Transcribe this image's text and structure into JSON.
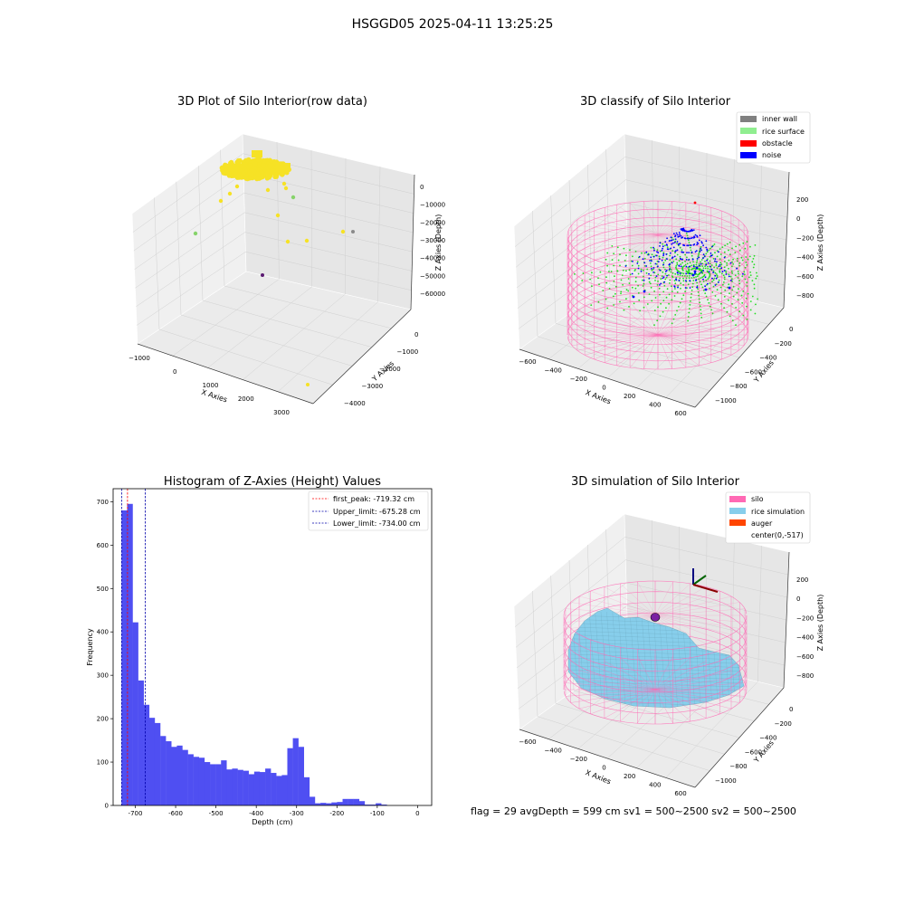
{
  "suptitle": "HSGGD05 2025-04-11 13:25:25",
  "footer": "flag = 29  avgDepth = 599 cm  sv1 = 500~2500  sv2 = 500~2500",
  "colors": {
    "raw": "#f6e225",
    "inner_wall": "#808080",
    "rice_surface": "#90ee90",
    "obstacle": "#ff0000",
    "noise": "#0000ff",
    "silo": "#ff69b4",
    "rice_simulation": "#87ceeb",
    "auger": "#ff4500",
    "hist_bar": "#4f4ff2",
    "first_peak": "#ff0000",
    "limits": "#0000aa"
  },
  "chart_data": [
    {
      "type": "scatter",
      "title": "3D Plot of Silo Interior(row data)",
      "xlabel": "X Axies",
      "ylabel": "Y Axies",
      "zlabel": "Z Axies (Depth)",
      "xticks": [
        "−1000",
        "0",
        "1000",
        "2000",
        "3000"
      ],
      "yticks": [
        "0",
        "−1000",
        "−2000",
        "−3000",
        "−4000"
      ],
      "zticks": [
        "0",
        "−10000",
        "−20000",
        "−30000",
        "−40000",
        "−50000",
        "−60000"
      ],
      "xlim": [
        -1000,
        3500
      ],
      "ylim": [
        -4200,
        400
      ],
      "zlim": [
        -65000,
        2000
      ],
      "cluster": {
        "x_range": [
          -700,
          600
        ],
        "y_range": [
          -600,
          400
        ],
        "z": -300
      },
      "points": [
        {
          "x": -300,
          "y": 200,
          "z": -12000,
          "c": "#f6e225"
        },
        {
          "x": -150,
          "y": 150,
          "z": -10500,
          "c": "#f6e225"
        },
        {
          "x": 0,
          "y": 100,
          "z": -8000,
          "c": "#f6e225"
        },
        {
          "x": 800,
          "y": -200,
          "z": -3500,
          "c": "#f6e225"
        },
        {
          "x": 1000,
          "y": -300,
          "z": -4200,
          "c": "#f6e225"
        },
        {
          "x": -500,
          "y": -900,
          "z": -25000,
          "c": "#f6e225"
        },
        {
          "x": 1600,
          "y": -800,
          "z": -14000,
          "c": "#86d36a"
        },
        {
          "x": 1700,
          "y": -1200,
          "z": -17000,
          "c": "#86d36a"
        },
        {
          "x": 700,
          "y": -1700,
          "z": -28000,
          "c": "#f6e225"
        },
        {
          "x": 1600,
          "y": -2300,
          "z": -22000,
          "c": "#f6e225"
        },
        {
          "x": 2800,
          "y": -2600,
          "z": -15000,
          "c": "#f6e225"
        },
        {
          "x": 3000,
          "y": -2900,
          "z": -14000,
          "c": "#f6e225"
        },
        {
          "x": 600,
          "y": -2100,
          "z": -47000,
          "c": "#8a8a8a"
        },
        {
          "x": 3100,
          "y": -3900,
          "z": -60000,
          "c": "#5b1a72"
        }
      ]
    },
    {
      "type": "scatter",
      "title": "3D classify of Silo Interior",
      "xlabel": "X Axies",
      "ylabel": "Y Axies",
      "zlabel": "Z Axies (Depth)",
      "xticks": [
        "−600",
        "−400",
        "−200",
        "0",
        "200",
        "400",
        "600"
      ],
      "yticks": [
        "0",
        "−200",
        "−400",
        "−600",
        "−800",
        "−1000"
      ],
      "zticks": [
        "200",
        "0",
        "−200",
        "−400",
        "−600",
        "−800"
      ],
      "legend": [
        "inner wall",
        "rice surface",
        "obstacle",
        "noise"
      ]
    },
    {
      "type": "bar",
      "title": "Histogram of Z-Axies (Height) Values",
      "xlabel": "Depth (cm)",
      "ylabel": "Frequency",
      "xlim": [
        -755,
        35
      ],
      "ylim": [
        0,
        730
      ],
      "xticks": [
        -700,
        -600,
        -500,
        -400,
        -300,
        -200,
        -100,
        0
      ],
      "yticks": [
        0,
        100,
        200,
        300,
        400,
        500,
        600,
        700
      ],
      "bin_start": -734,
      "bin_width": 13.7,
      "values": [
        680,
        695,
        422,
        288,
        232,
        202,
        190,
        160,
        148,
        135,
        138,
        128,
        118,
        112,
        110,
        100,
        95,
        95,
        104,
        83,
        85,
        82,
        80,
        72,
        78,
        77,
        85,
        75,
        68,
        70,
        132,
        155,
        135,
        65,
        20,
        5,
        6,
        5,
        7,
        8,
        15,
        15,
        15,
        10,
        2,
        2,
        5,
        2
      ],
      "vlines": [
        {
          "x": -719.32,
          "color": "#ff0000"
        },
        {
          "x": -675.28,
          "color": "#0000aa"
        },
        {
          "x": -734.0,
          "color": "#0000aa"
        }
      ],
      "legend": [
        "first_peak: -719.32 cm",
        "Upper_limit: -675.28 cm",
        "Lower_limit: -734.00 cm"
      ]
    },
    {
      "type": "area",
      "title": "3D simulation of Silo Interior",
      "xlabel": "X Axies",
      "ylabel": "Y Axies",
      "zlabel": "Z Axies (Depth)",
      "xticks": [
        "−600",
        "−400",
        "−200",
        "0",
        "200",
        "400",
        "600"
      ],
      "yticks": [
        "0",
        "−200",
        "−400",
        "−600",
        "−800",
        "−1000"
      ],
      "zticks": [
        "200",
        "0",
        "−200",
        "−400",
        "−600",
        "−800"
      ],
      "legend": [
        "silo",
        "rice simulation",
        "auger",
        "center(0,-517)"
      ]
    }
  ]
}
